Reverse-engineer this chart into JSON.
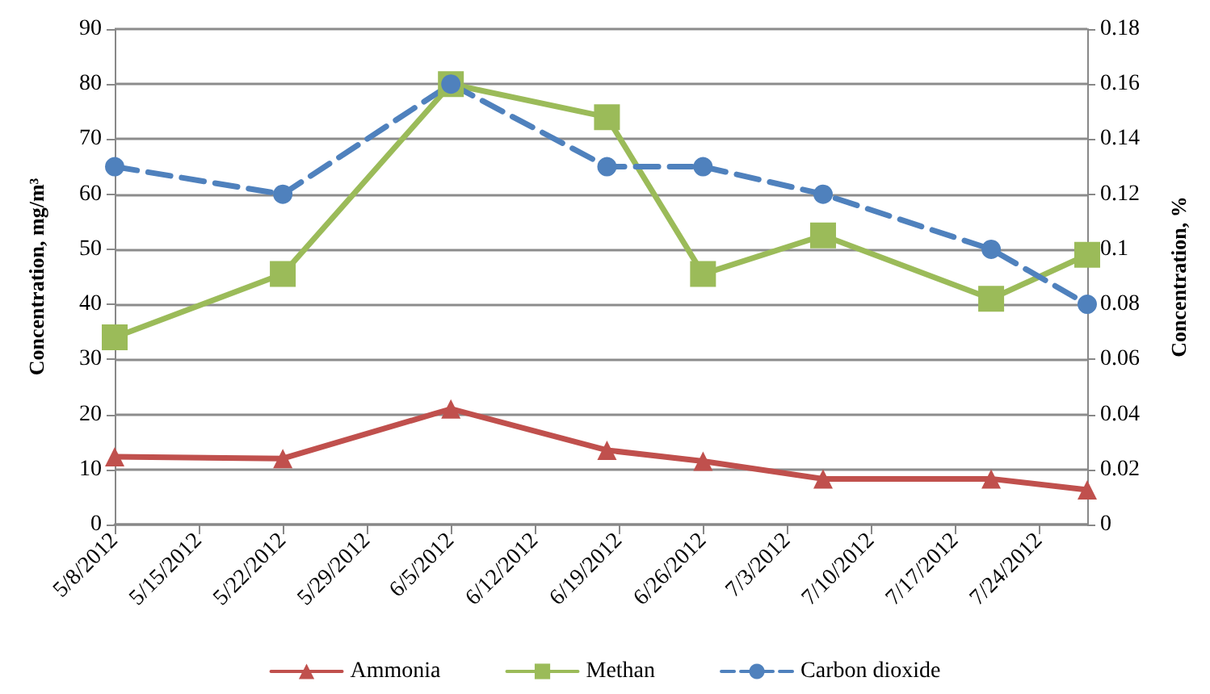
{
  "chart_data": {
    "type": "line",
    "x": [
      "2012-05-08",
      "2012-05-22",
      "2012-06-05",
      "2012-06-18",
      "2012-06-26",
      "2012-07-06",
      "2012-07-20",
      "2012-07-28"
    ],
    "series": [
      {
        "name": "Ammonia",
        "color": "#c0504d",
        "marker": "triangle",
        "line_style": "solid",
        "values": [
          12.3,
          12,
          21,
          13.5,
          11.5,
          8.3,
          8.3,
          6.3
        ]
      },
      {
        "name": "Methan",
        "color": "#9bbb59",
        "marker": "square",
        "line_style": "solid",
        "values": [
          34,
          45.5,
          80,
          74,
          45.5,
          52.5,
          41,
          49
        ]
      },
      {
        "name": "Carbon dioxide",
        "color": "#4f81bd",
        "marker": "circle",
        "line_style": "dashed",
        "axis": "y2",
        "values": [
          0.13,
          0.12,
          0.16,
          0.13,
          0.13,
          0.12,
          0.1,
          0.08
        ]
      }
    ],
    "ylabel": "Concentration, mg/m³",
    "y2label": "Concentration, %",
    "xlim": [
      "2012-05-08",
      "2012-07-28"
    ],
    "xticks": [
      {
        "value": "2012-05-08",
        "label": "5/8/2012"
      },
      {
        "value": "2012-05-15",
        "label": "5/15/2012"
      },
      {
        "value": "2012-05-22",
        "label": "5/22/2012"
      },
      {
        "value": "2012-05-29",
        "label": "5/29/2012"
      },
      {
        "value": "2012-06-05",
        "label": "6/5/2012"
      },
      {
        "value": "2012-06-12",
        "label": "6/12/2012"
      },
      {
        "value": "2012-06-19",
        "label": "6/19/2012"
      },
      {
        "value": "2012-06-26",
        "label": "6/26/2012"
      },
      {
        "value": "2012-07-03",
        "label": "7/3/2012"
      },
      {
        "value": "2012-07-10",
        "label": "7/10/2012"
      },
      {
        "value": "2012-07-17",
        "label": "7/17/2012"
      },
      {
        "value": "2012-07-24",
        "label": "7/24/2012"
      }
    ],
    "ylim": [
      0,
      90
    ],
    "yticks": [
      0,
      10,
      20,
      30,
      40,
      50,
      60,
      70,
      80,
      90
    ],
    "y2lim": [
      0,
      0.18
    ],
    "y2ticks": [
      0,
      0.02,
      0.04,
      0.06,
      0.08,
      0.1,
      0.12,
      0.14,
      0.16,
      0.18
    ],
    "grid": "y",
    "legend": "bottom"
  }
}
